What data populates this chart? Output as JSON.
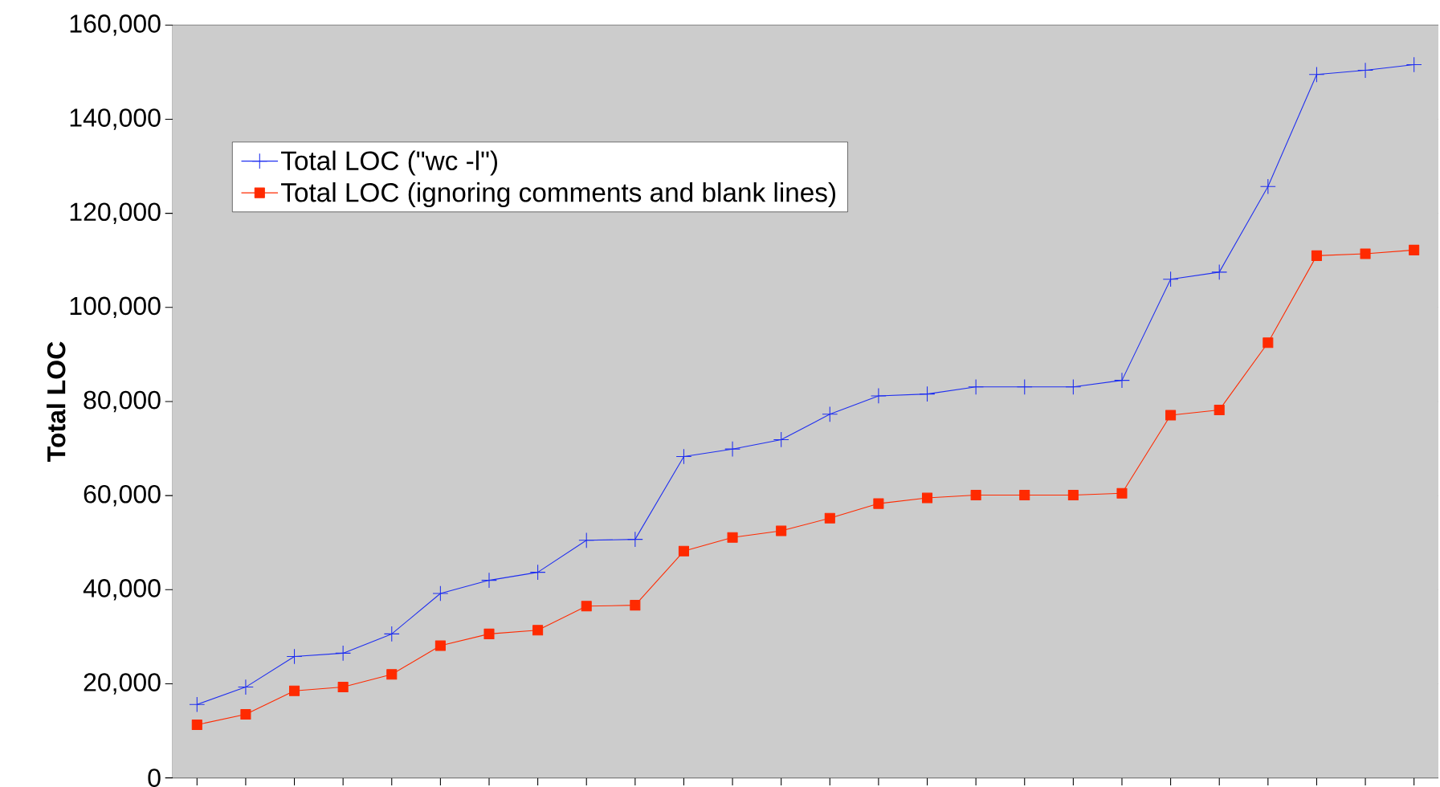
{
  "chart_data": {
    "type": "line",
    "ylabel": "Total LOC",
    "categories": [
      null,
      null,
      null,
      null,
      null,
      null,
      null,
      null,
      null,
      null,
      null,
      null,
      null,
      null,
      null,
      null,
      null,
      null,
      null,
      null,
      null,
      null,
      null,
      null,
      null,
      null
    ],
    "series": [
      {
        "name": "Total LOC (\"wc -l\")",
        "color": "#1f2ff0",
        "marker": "cross",
        "values": [
          15600,
          19300,
          25800,
          26500,
          30600,
          39200,
          42000,
          43700,
          50500,
          50700,
          68300,
          69900,
          71900,
          77300,
          81200,
          81600,
          83100,
          83100,
          83100,
          84500,
          106000,
          107500,
          125700,
          149500,
          150400,
          151600
        ]
      },
      {
        "name": "Total LOC (ignoring comments and blank lines)",
        "color": "#ff2a00",
        "marker": "square",
        "values": [
          11300,
          13500,
          18500,
          19300,
          22000,
          28100,
          30600,
          31400,
          36500,
          36700,
          48200,
          51100,
          52500,
          55200,
          58300,
          59500,
          60100,
          60100,
          60100,
          60500,
          77100,
          78200,
          92500,
          111000,
          111400,
          112200
        ]
      }
    ],
    "ylim": [
      0,
      160000
    ],
    "yticks": [
      {
        "value": 0,
        "label": "0"
      },
      {
        "value": 20000,
        "label": "20,000"
      },
      {
        "value": 40000,
        "label": "40,000"
      },
      {
        "value": 60000,
        "label": "60,000"
      },
      {
        "value": 80000,
        "label": "80,000"
      },
      {
        "value": 100000,
        "label": "100,000"
      },
      {
        "value": 120000,
        "label": "120,000"
      },
      {
        "value": 140000,
        "label": "140,000"
      },
      {
        "value": 160000,
        "label": "160,000"
      }
    ],
    "grid": "y",
    "legend": "top left",
    "line_style": "solid"
  }
}
